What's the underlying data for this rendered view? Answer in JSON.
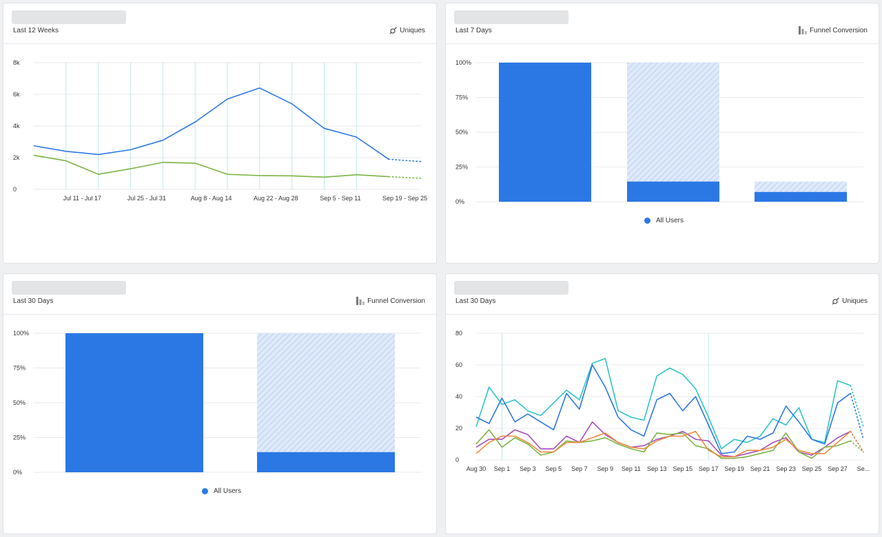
{
  "cards": [
    {
      "range": "Last 12 Weeks",
      "metric": "Uniques"
    },
    {
      "range": "Last 7 Days",
      "metric": "Funnel Conversion",
      "legend": "All Users"
    },
    {
      "range": "Last 30 Days",
      "metric": "Funnel Conversion",
      "legend": "All Users"
    },
    {
      "range": "Last 30 Days",
      "metric": "Uniques"
    }
  ],
  "colors": {
    "blue": "#2b78e4",
    "blue_light": "#c5d8f5",
    "green": "#7cb342",
    "teal": "#2ec4c6",
    "purple": "#a64dbd",
    "orange": "#ef8a3c",
    "grid": "#e8eaed",
    "vline": "#bfe9ea"
  },
  "chart_data": [
    {
      "type": "line",
      "x_tick_labels": [
        "Jul 11 - Jul 17",
        "Jul 25 - Jul 31",
        "Aug 8 - Aug 14",
        "Aug 22 - Aug 28",
        "Sep 5 - Sep 11",
        "Sep 19 - Sep 25"
      ],
      "y_tick_labels": [
        "0",
        "2k",
        "4k",
        "6k",
        "8k"
      ],
      "ylim": [
        0,
        8000
      ],
      "n_points": 12,
      "series": [
        {
          "color": "blue",
          "values": [
            2750,
            2400,
            2200,
            2500,
            3100,
            4250,
            5700,
            6400,
            5400,
            3850,
            3300,
            1900
          ],
          "incomplete": 1750
        },
        {
          "color": "green",
          "values": [
            2150,
            1800,
            950,
            1300,
            1700,
            1650,
            950,
            870,
            850,
            770,
            920,
            800
          ],
          "incomplete": 700
        }
      ],
      "grid": true
    },
    {
      "type": "bar",
      "y_tick_labels": [
        "0%",
        "25%",
        "50%",
        "75%",
        "100%"
      ],
      "ylim": [
        0,
        100
      ],
      "steps": [
        {
          "converted": 100,
          "total": 100
        },
        {
          "converted": 14.5,
          "total": 100
        },
        {
          "converted": 7,
          "total": 14.5
        }
      ],
      "legend": "top"
    },
    {
      "type": "bar",
      "y_tick_labels": [
        "0%",
        "25%",
        "50%",
        "75%",
        "100%"
      ],
      "ylim": [
        0,
        100
      ],
      "steps": [
        {
          "converted": 100,
          "total": 100
        },
        {
          "converted": 14.5,
          "total": 100
        }
      ]
    },
    {
      "type": "line",
      "x_tick_labels": [
        "Aug 30",
        "Sep 1",
        "Sep 3",
        "Sep 5",
        "Sep 7",
        "Sep 9",
        "Sep 11",
        "Sep 13",
        "Sep 15",
        "Sep 17",
        "Sep 19",
        "Sep 21",
        "Sep 23",
        "Sep 25",
        "Sep 27",
        "Se..."
      ],
      "y_tick_labels": [
        "0",
        "20",
        "40",
        "60",
        "80"
      ],
      "ylim": [
        0,
        80
      ],
      "series": [
        {
          "color": "teal",
          "values": [
            21,
            46,
            35,
            38,
            31,
            28,
            36,
            44,
            38,
            61,
            64,
            31,
            27,
            25,
            53,
            58,
            54,
            45,
            27,
            7,
            13,
            11,
            15,
            26,
            22,
            33,
            13,
            11,
            50,
            47
          ],
          "incomplete": 21
        },
        {
          "color": "blue",
          "values": [
            27,
            23,
            39,
            24,
            29,
            24,
            19,
            42,
            32,
            60,
            46,
            27,
            19,
            15,
            38,
            42,
            31,
            40,
            22,
            4,
            5,
            15,
            13,
            17,
            34,
            24,
            13,
            10,
            36,
            42
          ],
          "incomplete": 13
        },
        {
          "color": "purple",
          "values": [
            8,
            13,
            13,
            19,
            16,
            7,
            7,
            15,
            11,
            24,
            16,
            11,
            8,
            9,
            13,
            15,
            18,
            13,
            12,
            3,
            2,
            4,
            6,
            11,
            14,
            5,
            3,
            8,
            14,
            18
          ],
          "incomplete": 5
        },
        {
          "color": "green",
          "values": [
            10,
            19,
            8,
            14,
            10,
            3,
            5,
            12,
            11,
            12,
            14,
            10,
            7,
            5,
            17,
            16,
            17,
            9,
            7,
            1,
            1,
            2,
            4,
            6,
            17,
            5,
            1,
            8,
            9,
            12
          ],
          "incomplete": 5
        },
        {
          "color": "orange",
          "values": [
            4,
            11,
            15,
            15,
            11,
            5,
            5,
            11,
            11,
            14,
            17,
            11,
            8,
            7,
            12,
            15,
            15,
            18,
            6,
            2,
            2,
            6,
            6,
            8,
            13,
            6,
            4,
            4,
            11,
            18
          ],
          "incomplete": 5
        }
      ],
      "grid": true
    }
  ]
}
